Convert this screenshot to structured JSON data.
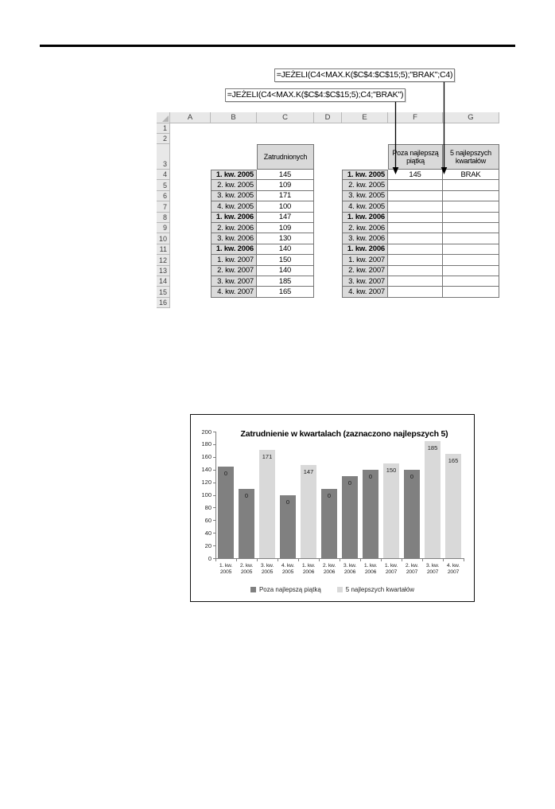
{
  "page": {
    "background": "#ffffff"
  },
  "callouts": {
    "formula_top": "=JEŻELI(C4<MAX.K($C$4:$C$15;5);\"BRAK\";C4)",
    "formula_bottom": "=JEŻELI(C4<MAX.K($C$4:$C$15;5);C4;\"BRAK\")"
  },
  "spreadsheet": {
    "column_letters": [
      "A",
      "B",
      "C",
      "D",
      "E",
      "F",
      "G"
    ],
    "row_numbers": [
      "1",
      "2",
      "3",
      "4",
      "5",
      "6",
      "7",
      "8",
      "9",
      "10",
      "11",
      "12",
      "13",
      "14",
      "15",
      "16"
    ],
    "employment_header": "Zatrudnionych",
    "outside_top5_header_lines": [
      "Poza najlepszą",
      "piątką"
    ],
    "top5_header_lines": [
      "5 najlepszych",
      "kwartałów"
    ],
    "quarters": [
      "1. kw. 2005",
      "2. kw. 2005",
      "3. kw. 2005",
      "4. kw. 2005",
      "1. kw. 2006",
      "2. kw. 2006",
      "3. kw. 2006",
      "1. kw. 2006",
      "1. kw. 2007",
      "2. kw. 2007",
      "3. kw. 2007",
      "4. kw. 2007"
    ],
    "bold_rows": [
      4,
      8,
      11
    ],
    "employment_values": [
      "145",
      "109",
      "171",
      "100",
      "147",
      "109",
      "130",
      "140",
      "150",
      "140",
      "185",
      "165"
    ],
    "outside_top5_values": [
      "145",
      "",
      "",
      "",
      "",
      "",
      "",
      "",
      "",
      "",
      "",
      ""
    ],
    "top5_values": [
      "BRAK",
      "",
      "",
      "",
      "",
      "",
      "",
      "",
      "",
      "",
      "",
      ""
    ]
  },
  "chart_data": {
    "type": "bar",
    "title": "Zatrudnienie w kwartalach (zaznaczono najlepszych 5)",
    "categories": [
      "1. kw. 2005",
      "2. kw. 2005",
      "3. kw. 2005",
      "4. kw. 2005",
      "1. kw. 2006",
      "2. kw. 2006",
      "3. kw. 2006",
      "1. kw. 2006",
      "1. kw. 2007",
      "2. kw. 2007",
      "3. kw. 2007",
      "4. kw. 2007"
    ],
    "series": [
      {
        "name": "Poza najlepszą piątką",
        "color": "#808080",
        "values": [
          145,
          109,
          0,
          100,
          0,
          109,
          130,
          140,
          0,
          140,
          0,
          0
        ]
      },
      {
        "name": "5 najlepszych kwartałów",
        "color": "#D9D9D9",
        "values": [
          0,
          0,
          171,
          0,
          147,
          0,
          0,
          0,
          150,
          0,
          185,
          165
        ]
      }
    ],
    "bar_labels": [
      "0",
      "0",
      "171",
      "0",
      "147",
      "0",
      "0",
      "0",
      "150",
      "0",
      "185",
      "165"
    ],
    "xlabel": "",
    "ylabel": "",
    "ylim": [
      0,
      200
    ],
    "ytick_step": 20,
    "grid": false,
    "legend_position": "bottom",
    "axis_color": "#808080"
  }
}
